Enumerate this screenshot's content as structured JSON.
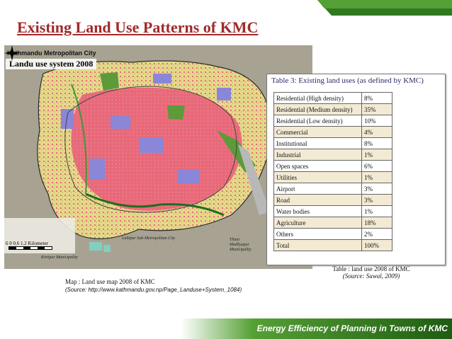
{
  "slide": {
    "title": "Existing Land Use Patterns of KMC",
    "footer": "Energy  Efficiency of Planning  in Towns of KMC"
  },
  "map": {
    "label_city": "Kathmandu Metropolitan City",
    "label_system": "Landu use system 2008",
    "scale_text": "6     0    0.6   1.2  Kilometer",
    "place_lalitpur": "Lalitpur Sub-Metropolitan City",
    "place_kirtipur": "Kirtipur Municipality",
    "place_thimi": "Thimi Madhyapur Municipality",
    "caption": "Map : Land use map 2008 of KMC",
    "source": "(Source: http://www.kathmandu.gov.np/Page_Landuse+System_1084)"
  },
  "land_table": {
    "title": "Table 3: Existing land uses (as defined by KMC)",
    "rows": [
      {
        "use": "Residential (High density)",
        "pct": "8%"
      },
      {
        "use": "Residential (Medium density)",
        "pct": "35%"
      },
      {
        "use": "Residential (Low density)",
        "pct": "10%"
      },
      {
        "use": "Commercial",
        "pct": "4%"
      },
      {
        "use": "Institutional",
        "pct": "8%"
      },
      {
        "use": "Industrial",
        "pct": "1%"
      },
      {
        "use": "Open spaces",
        "pct": "6%"
      },
      {
        "use": "Utilities",
        "pct": "1%"
      },
      {
        "use": "Airport",
        "pct": "3%"
      },
      {
        "use": "Road",
        "pct": "3%"
      },
      {
        "use": "Water bodies",
        "pct": "1%"
      },
      {
        "use": "Agriculture",
        "pct": "18%"
      },
      {
        "use": "Others",
        "pct": "2%"
      },
      {
        "use": "Total",
        "pct": "100%"
      }
    ],
    "caption": "Table : land use 2008 of KMC",
    "source": "(Source: Suwal, 2009)"
  },
  "colors": {
    "title": "#a12a2a",
    "residential": "#e86a7a",
    "institutional": "#8a86d8",
    "agriculture": "#e4d98a",
    "open_space": "#5c9a3a",
    "footer_green": "#2f7a1f"
  }
}
